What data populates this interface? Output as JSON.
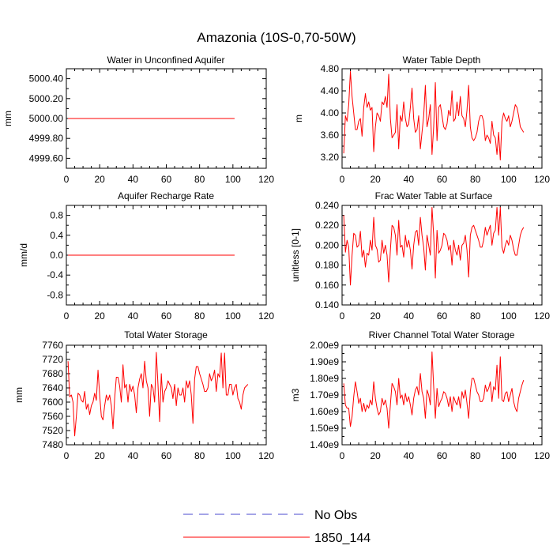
{
  "figure": {
    "title": "Amazonia (10S-0,70-50W)",
    "legend": [
      {
        "label": "No Obs",
        "style": "dashed",
        "color": "#4a4acf"
      },
      {
        "label": "1850_144",
        "style": "solid",
        "color": "#ff0000"
      }
    ]
  },
  "chart_data": [
    {
      "type": "line",
      "title": "Water in Unconfined Aquifer",
      "xlabel": "",
      "ylabel": "mm",
      "xlim": [
        0,
        120
      ],
      "ylim": [
        4999.5,
        5000.5
      ],
      "xticks": [
        0,
        20,
        40,
        60,
        80,
        100,
        120
      ],
      "yticks": [
        4999.6,
        4999.8,
        5000.0,
        5000.2,
        5000.4
      ],
      "ytick_labels": [
        "4999.60",
        "4999.80",
        "5000.00",
        "5000.20",
        "5000.40"
      ],
      "series": [
        {
          "name": "1850_144",
          "x_start": 1,
          "values": [
            5000,
            5000,
            5000,
            5000,
            5000,
            5000,
            5000,
            5000,
            5000,
            5000,
            5000,
            5000,
            5000,
            5000,
            5000,
            5000,
            5000,
            5000,
            5000,
            5000,
            5000,
            5000,
            5000,
            5000,
            5000,
            5000,
            5000,
            5000,
            5000,
            5000,
            5000,
            5000,
            5000,
            5000,
            5000,
            5000,
            5000,
            5000,
            5000,
            5000,
            5000,
            5000,
            5000,
            5000,
            5000,
            5000,
            5000,
            5000,
            5000,
            5000,
            5000,
            5000,
            5000,
            5000,
            5000,
            5000,
            5000,
            5000,
            5000,
            5000,
            5000,
            5000,
            5000,
            5000,
            5000,
            5000,
            5000,
            5000,
            5000,
            5000,
            5000,
            5000,
            5000,
            5000,
            5000,
            5000,
            5000,
            5000,
            5000,
            5000,
            5000,
            5000,
            5000,
            5000,
            5000,
            5000,
            5000,
            5000,
            5000,
            5000,
            5000,
            5000,
            5000,
            5000,
            5000,
            5000,
            5000,
            5000,
            5000,
            5000,
            5000
          ]
        }
      ]
    },
    {
      "type": "line",
      "title": "Water Table Depth",
      "xlabel": "",
      "ylabel": "m",
      "xlim": [
        0,
        120
      ],
      "ylim": [
        3.0,
        4.8
      ],
      "xticks": [
        0,
        20,
        40,
        60,
        80,
        100,
        120
      ],
      "yticks": [
        3.2,
        3.6,
        4.0,
        4.4,
        4.8
      ],
      "ytick_labels": [
        "3.20",
        "3.60",
        "4.00",
        "4.40",
        "4.80"
      ],
      "series": [
        {
          "name": "1850_144",
          "x_start": 1,
          "values": [
            3.27,
            3.95,
            3.85,
            4.15,
            4.75,
            4.3,
            4.0,
            3.7,
            3.7,
            3.85,
            3.9,
            3.58,
            4.1,
            4.35,
            4.1,
            4.2,
            4.05,
            4.1,
            3.3,
            3.75,
            4.0,
            3.95,
            3.85,
            4.2,
            4.15,
            4.3,
            4.1,
            4.7,
            3.9,
            3.55,
            3.6,
            3.65,
            4.15,
            3.35,
            3.95,
            3.85,
            4.2,
            3.9,
            3.75,
            3.8,
            4.1,
            4.45,
            3.9,
            3.65,
            3.7,
            3.95,
            3.35,
            3.65,
            3.95,
            4.5,
            3.75,
            3.9,
            4.15,
            3.25,
            3.75,
            4.55,
            3.5,
            4.1,
            4.15,
            3.95,
            3.75,
            3.7,
            3.8,
            4.05,
            3.95,
            4.4,
            3.85,
            3.9,
            4.2,
            3.95,
            4.3,
            3.95,
            3.9,
            3.75,
            4.05,
            4.5,
            3.75,
            3.55,
            3.5,
            3.55,
            3.65,
            3.85,
            3.95,
            3.95,
            3.85,
            3.5,
            3.6,
            3.55,
            3.45,
            3.85,
            3.6,
            3.55,
            3.25,
            3.65,
            3.15,
            3.85,
            4.0,
            3.9,
            3.85,
            3.95,
            3.75,
            3.85,
            4.0,
            4.15,
            4.1,
            3.95,
            3.75,
            3.7,
            3.65
          ]
        }
      ]
    },
    {
      "type": "line",
      "title": "Aquifer Recharge Rate",
      "xlabel": "",
      "ylabel": "mm/d",
      "xlim": [
        0,
        120
      ],
      "ylim": [
        -1.0,
        1.0
      ],
      "xticks": [
        0,
        20,
        40,
        60,
        80,
        100,
        120
      ],
      "yticks": [
        -0.8,
        -0.4,
        0.0,
        0.4,
        0.8
      ],
      "ytick_labels": [
        "-0.8",
        "-0.4",
        "0.0",
        "0.4",
        "0.8"
      ],
      "series": [
        {
          "name": "1850_144",
          "x_start": 1,
          "values": [
            0,
            0,
            0,
            0,
            0,
            0,
            0,
            0,
            0,
            0,
            0,
            0,
            0,
            0,
            0,
            0,
            0,
            0,
            0,
            0,
            0,
            0,
            0,
            0,
            0,
            0,
            0,
            0,
            0,
            0,
            0,
            0,
            0,
            0,
            0,
            0,
            0,
            0,
            0,
            0,
            0,
            0,
            0,
            0,
            0,
            0,
            0,
            0,
            0,
            0,
            0,
            0,
            0,
            0,
            0,
            0,
            0,
            0,
            0,
            0,
            0,
            0,
            0,
            0,
            0,
            0,
            0,
            0,
            0,
            0,
            0,
            0,
            0,
            0,
            0,
            0,
            0,
            0,
            0,
            0,
            0,
            0,
            0,
            0,
            0,
            0,
            0,
            0,
            0,
            0,
            0,
            0,
            0,
            0,
            0,
            0,
            0,
            0,
            0,
            0,
            0
          ]
        }
      ]
    },
    {
      "type": "line",
      "title": "Frac Water Table at Surface",
      "xlabel": "",
      "ylabel": "unitless [0-1]",
      "xlim": [
        0,
        120
      ],
      "ylim": [
        0.14,
        0.24
      ],
      "xticks": [
        0,
        20,
        40,
        60,
        80,
        100,
        120
      ],
      "yticks": [
        0.14,
        0.16,
        0.18,
        0.2,
        0.22,
        0.24
      ],
      "ytick_labels": [
        "0.140",
        "0.160",
        "0.180",
        "0.200",
        "0.220",
        "0.240"
      ],
      "series": [
        {
          "name": "1850_144",
          "x_start": 1,
          "values": [
            0.23,
            0.193,
            0.205,
            0.198,
            0.16,
            0.19,
            0.212,
            0.21,
            0.198,
            0.2,
            0.214,
            0.188,
            0.195,
            0.178,
            0.192,
            0.19,
            0.205,
            0.195,
            0.228,
            0.2,
            0.196,
            0.183,
            0.185,
            0.205,
            0.192,
            0.2,
            0.19,
            0.163,
            0.195,
            0.22,
            0.218,
            0.21,
            0.19,
            0.225,
            0.198,
            0.2,
            0.188,
            0.21,
            0.198,
            0.205,
            0.195,
            0.176,
            0.2,
            0.213,
            0.215,
            0.2,
            0.228,
            0.21,
            0.198,
            0.175,
            0.21,
            0.2,
            0.19,
            0.238,
            0.21,
            0.167,
            0.215,
            0.192,
            0.195,
            0.2,
            0.212,
            0.21,
            0.205,
            0.195,
            0.2,
            0.18,
            0.205,
            0.195,
            0.19,
            0.2,
            0.185,
            0.2,
            0.202,
            0.21,
            0.195,
            0.168,
            0.21,
            0.218,
            0.22,
            0.215,
            0.21,
            0.205,
            0.198,
            0.198,
            0.205,
            0.218,
            0.21,
            0.215,
            0.22,
            0.2,
            0.212,
            0.215,
            0.238,
            0.21,
            0.238,
            0.198,
            0.192,
            0.2,
            0.205,
            0.2,
            0.21,
            0.205,
            0.196,
            0.19,
            0.19,
            0.2,
            0.21,
            0.215,
            0.218
          ]
        }
      ]
    },
    {
      "type": "line",
      "title": "Total Water Storage",
      "xlabel": "",
      "ylabel": "mm",
      "xlim": [
        0,
        120
      ],
      "ylim": [
        7480,
        7760
      ],
      "xticks": [
        0,
        20,
        40,
        60,
        80,
        100,
        120
      ],
      "yticks": [
        7480,
        7520,
        7560,
        7600,
        7640,
        7680,
        7720,
        7760
      ],
      "ytick_labels": [
        "7480",
        "7520",
        "7560",
        "7600",
        "7640",
        "7680",
        "7720",
        "7760"
      ],
      "series": [
        {
          "name": "1850_144",
          "x_start": 1,
          "values": [
            7715,
            7615,
            7620,
            7600,
            7505,
            7560,
            7625,
            7620,
            7605,
            7600,
            7630,
            7580,
            7595,
            7565,
            7590,
            7600,
            7625,
            7605,
            7690,
            7620,
            7560,
            7550,
            7590,
            7620,
            7605,
            7620,
            7590,
            7525,
            7610,
            7670,
            7670,
            7645,
            7600,
            7705,
            7640,
            7650,
            7600,
            7650,
            7630,
            7645,
            7620,
            7570,
            7640,
            7665,
            7680,
            7640,
            7715,
            7660,
            7640,
            7560,
            7650,
            7640,
            7600,
            7740,
            7650,
            7545,
            7680,
            7600,
            7630,
            7640,
            7660,
            7650,
            7640,
            7610,
            7650,
            7590,
            7640,
            7620,
            7620,
            7640,
            7600,
            7660,
            7640,
            7660,
            7620,
            7540,
            7665,
            7700,
            7700,
            7680,
            7665,
            7650,
            7630,
            7630,
            7640,
            7680,
            7660,
            7670,
            7690,
            7630,
            7680,
            7670,
            7738,
            7640,
            7738,
            7620,
            7620,
            7650,
            7650,
            7620,
            7640,
            7650,
            7610,
            7600,
            7580,
            7620,
            7640,
            7645,
            7650
          ]
        }
      ]
    },
    {
      "type": "line",
      "title": "River Channel Total Water Storage",
      "xlabel": "",
      "ylabel": "m3",
      "xlim": [
        0,
        120
      ],
      "ylim": [
        1400000000.0,
        2000000000.0
      ],
      "xticks": [
        0,
        20,
        40,
        60,
        80,
        100,
        120
      ],
      "yticks": [
        1400000000.0,
        1500000000.0,
        1600000000.0,
        1700000000.0,
        1800000000.0,
        1900000000.0,
        2000000000.0
      ],
      "ytick_labels": [
        "1.40e9",
        "1.50e9",
        "1.60e9",
        "1.70e9",
        "1.80e9",
        "1.90e9",
        "2.00e9"
      ],
      "series": [
        {
          "name": "1850_144",
          "x_start": 1,
          "values": [
            1770000000.0,
            1640000000.0,
            1620000000.0,
            1620000000.0,
            1510000000.0,
            1570000000.0,
            1690000000.0,
            1780000000.0,
            1720000000.0,
            1650000000.0,
            1680000000.0,
            1600000000.0,
            1650000000.0,
            1600000000.0,
            1640000000.0,
            1620000000.0,
            1670000000.0,
            1640000000.0,
            1780000000.0,
            1680000000.0,
            1620000000.0,
            1580000000.0,
            1600000000.0,
            1680000000.0,
            1640000000.0,
            1670000000.0,
            1620000000.0,
            1500000000.0,
            1640000000.0,
            1770000000.0,
            1750000000.0,
            1720000000.0,
            1640000000.0,
            1800000000.0,
            1680000000.0,
            1700000000.0,
            1640000000.0,
            1710000000.0,
            1660000000.0,
            1690000000.0,
            1640000000.0,
            1580000000.0,
            1680000000.0,
            1730000000.0,
            1750000000.0,
            1700000000.0,
            1830000000.0,
            1720000000.0,
            1680000000.0,
            1560000000.0,
            1730000000.0,
            1700000000.0,
            1640000000.0,
            1960000000.0,
            1750000000.0,
            1560000000.0,
            1740000000.0,
            1630000000.0,
            1660000000.0,
            1680000000.0,
            1720000000.0,
            1710000000.0,
            1680000000.0,
            1630000000.0,
            1690000000.0,
            1600000000.0,
            1690000000.0,
            1660000000.0,
            1640000000.0,
            1690000000.0,
            1620000000.0,
            1720000000.0,
            1680000000.0,
            1730000000.0,
            1650000000.0,
            1560000000.0,
            1720000000.0,
            1800000000.0,
            1800000000.0,
            1760000000.0,
            1720000000.0,
            1700000000.0,
            1660000000.0,
            1660000000.0,
            1680000000.0,
            1760000000.0,
            1720000000.0,
            1740000000.0,
            1780000000.0,
            1660000000.0,
            1750000000.0,
            1730000000.0,
            1880000000.0,
            1680000000.0,
            1930000000.0,
            1670000000.0,
            1660000000.0,
            1710000000.0,
            1720000000.0,
            1660000000.0,
            1700000000.0,
            1740000000.0,
            1660000000.0,
            1620000000.0,
            1600000000.0,
            1680000000.0,
            1720000000.0,
            1760000000.0,
            1790000000.0
          ]
        }
      ]
    }
  ]
}
